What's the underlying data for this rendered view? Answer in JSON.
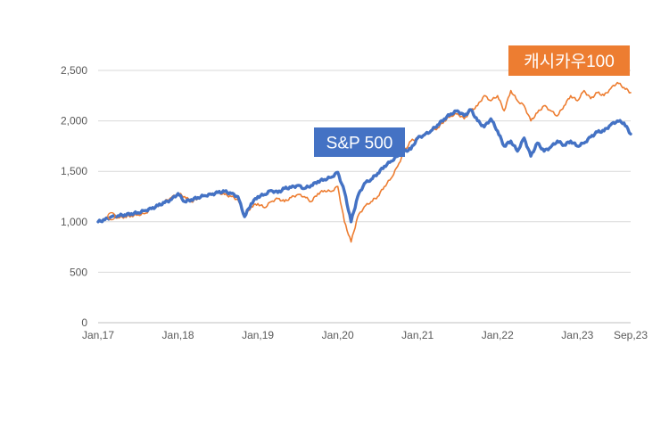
{
  "chart_data": {
    "type": "line",
    "title": "",
    "xlabel": "",
    "ylabel": "",
    "ylim": [
      0,
      2500
    ],
    "yticks": [
      0,
      500,
      1000,
      1500,
      2000,
      2500
    ],
    "ytick_labels": [
      "0",
      "500",
      "1,000",
      "1,500",
      "2,000",
      "2,500"
    ],
    "xticks": [
      0,
      12,
      24,
      36,
      48,
      60,
      72,
      80
    ],
    "xtick_labels": [
      "Jan,17",
      "Jan,18",
      "Jan,19",
      "Jan,20",
      "Jan,21",
      "Jan,22",
      "Jan,23",
      "Sep,23"
    ],
    "xlim": [
      0,
      80
    ],
    "gridlines": true,
    "series": [
      {
        "name": "캐시카우100",
        "color": "#ED7D31",
        "x": [
          0,
          1,
          2,
          3,
          4,
          5,
          6,
          7,
          8,
          9,
          10,
          11,
          12,
          13,
          14,
          15,
          16,
          17,
          18,
          19,
          20,
          21,
          22,
          23,
          24,
          25,
          26,
          27,
          28,
          29,
          30,
          31,
          32,
          33,
          34,
          35,
          36,
          37,
          38,
          39,
          40,
          41,
          42,
          43,
          44,
          45,
          46,
          47,
          48,
          49,
          50,
          51,
          52,
          53,
          54,
          55,
          56,
          57,
          58,
          59,
          60,
          61,
          62,
          63,
          64,
          65,
          66,
          67,
          68,
          69,
          70,
          71,
          72,
          73,
          74,
          75,
          76,
          77,
          78,
          79,
          80
        ],
        "values": [
          1000,
          1030,
          1060,
          1040,
          1050,
          1060,
          1070,
          1080,
          1130,
          1150,
          1200,
          1240,
          1280,
          1250,
          1200,
          1230,
          1260,
          1280,
          1290,
          1270,
          1250,
          1220,
          1050,
          1150,
          1180,
          1140,
          1200,
          1230,
          1200,
          1240,
          1270,
          1250,
          1200,
          1280,
          1310,
          1300,
          1350,
          1000,
          800,
          1050,
          1150,
          1200,
          1250,
          1350,
          1430,
          1550,
          1700,
          1800,
          1830,
          1870,
          1900,
          1930,
          2000,
          2050,
          2070,
          2020,
          2100,
          2150,
          2250,
          2200,
          2250,
          2100,
          2300,
          2200,
          2150,
          2000,
          2080,
          2150,
          2100,
          2050,
          2150,
          2250,
          2200,
          2300,
          2220,
          2280,
          2250,
          2320,
          2380,
          2330,
          2280
        ]
      },
      {
        "name": "S&P 500",
        "color": "#4472C4",
        "x": [
          0,
          1,
          2,
          3,
          4,
          5,
          6,
          7,
          8,
          9,
          10,
          11,
          12,
          13,
          14,
          15,
          16,
          17,
          18,
          19,
          20,
          21,
          22,
          23,
          24,
          25,
          26,
          27,
          28,
          29,
          30,
          31,
          32,
          33,
          34,
          35,
          36,
          37,
          38,
          39,
          40,
          41,
          42,
          43,
          44,
          45,
          46,
          47,
          48,
          49,
          50,
          51,
          52,
          53,
          54,
          55,
          56,
          57,
          58,
          59,
          60,
          61,
          62,
          63,
          64,
          65,
          66,
          67,
          68,
          69,
          70,
          71,
          72,
          73,
          74,
          75,
          76,
          77,
          78,
          79,
          80
        ],
        "values": [
          1000,
          1020,
          1050,
          1060,
          1070,
          1080,
          1090,
          1110,
          1130,
          1160,
          1190,
          1220,
          1280,
          1200,
          1220,
          1240,
          1260,
          1270,
          1290,
          1300,
          1280,
          1250,
          1050,
          1180,
          1250,
          1270,
          1310,
          1290,
          1330,
          1340,
          1360,
          1330,
          1360,
          1400,
          1420,
          1440,
          1490,
          1300,
          1000,
          1250,
          1380,
          1420,
          1480,
          1550,
          1600,
          1650,
          1700,
          1720,
          1830,
          1860,
          1900,
          1960,
          2020,
          2070,
          2100,
          2050,
          2110,
          2000,
          1940,
          2020,
          1900,
          1750,
          1800,
          1700,
          1830,
          1650,
          1780,
          1700,
          1740,
          1800,
          1760,
          1800,
          1750,
          1780,
          1840,
          1890,
          1900,
          1960,
          2000,
          1980,
          1870
        ]
      }
    ],
    "annotations": [
      {
        "text": "S&P 500",
        "series": "S&P 500",
        "box_color": "#4472C4"
      },
      {
        "text": "캐시카우100",
        "series": "캐시카우100",
        "box_color": "#ED7D31"
      }
    ]
  }
}
